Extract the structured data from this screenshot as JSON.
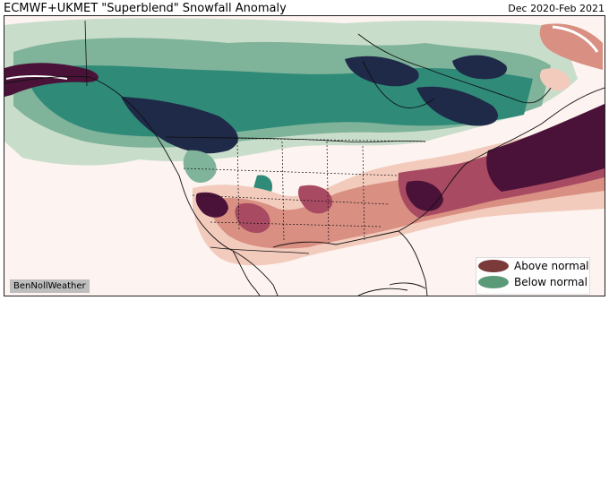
{
  "title": "ECMWF+UKMET \"Superblend\" Snowfall Anomaly",
  "date_range": "Dec 2020-Feb 2021",
  "credit": "BenNollWeather",
  "legend": {
    "above": {
      "label": "Above normal",
      "color": "#7a3a3a"
    },
    "below": {
      "label": "Below normal",
      "color": "#5a9a78"
    }
  },
  "colors": {
    "ocean": "#fdf3f0",
    "above_light": "#f2cbbd",
    "above_mid": "#d98f82",
    "above_strong": "#a84a62",
    "above_extreme": "#4a1238",
    "below_light": "#c9ddcb",
    "below_mid": "#7fb39a",
    "below_strong": "#2f8a78",
    "below_extreme": "#1f2a48"
  }
}
